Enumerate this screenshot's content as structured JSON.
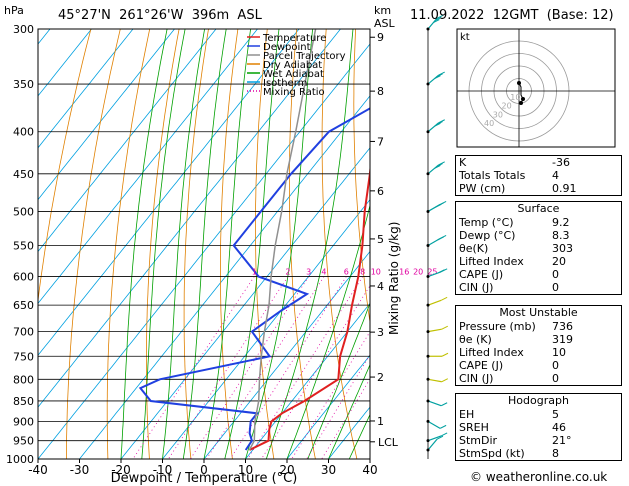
{
  "header": {
    "pressure_unit": "hPa",
    "location": "45°27'N  261°26'W  396m  ASL",
    "km_unit": "km",
    "asl_unit": "ASL",
    "datetime": "11.09.2022  12GMT  (Base: 12)"
  },
  "legend": [
    {
      "label": "Temperature",
      "color": "#e02020",
      "style": "solid"
    },
    {
      "label": "Dewpoint",
      "color": "#2040e0",
      "style": "solid"
    },
    {
      "label": "Parcel Trajectory",
      "color": "#909090",
      "style": "solid"
    },
    {
      "label": "Dry Adiabat",
      "color": "#e08000",
      "style": "solid"
    },
    {
      "label": "Wet Adiabat",
      "color": "#00a000",
      "style": "solid"
    },
    {
      "label": "Isotherm",
      "color": "#00a0e0",
      "style": "solid"
    },
    {
      "label": "Mixing Ratio",
      "color": "#e000a0",
      "style": "dotted"
    }
  ],
  "chart_data": {
    "type": "line",
    "xlabel": "Dewpoint / Temperature (°C)",
    "ylabel_right": "Mixing Ratio (g/kg)",
    "x_ticks": [
      -40,
      -30,
      -20,
      -10,
      0,
      10,
      20,
      30,
      40
    ],
    "pressure_ticks": [
      300,
      350,
      400,
      450,
      500,
      550,
      600,
      650,
      700,
      750,
      800,
      850,
      900,
      950,
      1000
    ],
    "km_ticks": [
      {
        "label": "9",
        "p": 307
      },
      {
        "label": "8",
        "p": 357
      },
      {
        "label": "7",
        "p": 411
      },
      {
        "label": "6",
        "p": 472
      },
      {
        "label": "5",
        "p": 540
      },
      {
        "label": "4",
        "p": 616
      },
      {
        "label": "3",
        "p": 701
      },
      {
        "label": "2",
        "p": 795
      },
      {
        "label": "1",
        "p": 899
      }
    ],
    "lcl_label": "LCL",
    "lcl_p": 953,
    "mixing_ratio_labels": [
      "1",
      "2",
      "3",
      "4",
      "6",
      "8",
      "10",
      "16",
      "20",
      "25"
    ],
    "mixing_ratio_values": [
      1,
      2,
      3,
      4,
      6,
      8,
      10,
      16,
      20,
      25
    ],
    "series": [
      {
        "name": "Temperature",
        "color": "#e02020",
        "points": [
          [
            975,
            9.2
          ],
          [
            950,
            12
          ],
          [
            920,
            10
          ],
          [
            900,
            9
          ],
          [
            880,
            10
          ],
          [
            850,
            13
          ],
          [
            800,
            17
          ],
          [
            750,
            13
          ],
          [
            700,
            10
          ],
          [
            650,
            6
          ],
          [
            600,
            2
          ],
          [
            550,
            -3
          ],
          [
            500,
            -9
          ],
          [
            450,
            -15
          ],
          [
            400,
            -22
          ],
          [
            350,
            -30
          ],
          [
            300,
            -40
          ]
        ]
      },
      {
        "name": "Dewpoint",
        "color": "#2040e0",
        "points": [
          [
            975,
            8.3
          ],
          [
            950,
            8
          ],
          [
            930,
            6
          ],
          [
            900,
            4
          ],
          [
            880,
            4
          ],
          [
            850,
            -24
          ],
          [
            820,
            -29
          ],
          [
            800,
            -26
          ],
          [
            750,
            -4
          ],
          [
            700,
            -13
          ],
          [
            660,
            -10
          ],
          [
            630,
            -7
          ],
          [
            600,
            -22
          ],
          [
            550,
            -34
          ],
          [
            500,
            -34
          ],
          [
            450,
            -34
          ],
          [
            400,
            -33
          ],
          [
            350,
            -22
          ],
          [
            320,
            -10
          ],
          [
            300,
            -9
          ]
        ]
      },
      {
        "name": "Parcel Trajectory",
        "color": "#909090",
        "points": [
          [
            975,
            9.2
          ],
          [
            950,
            8.6
          ],
          [
            900,
            5
          ],
          [
            850,
            2
          ],
          [
            800,
            -2
          ],
          [
            750,
            -6
          ],
          [
            700,
            -10
          ],
          [
            650,
            -14
          ],
          [
            600,
            -19
          ],
          [
            550,
            -24
          ],
          [
            500,
            -29
          ],
          [
            450,
            -35
          ],
          [
            400,
            -41
          ],
          [
            350,
            -48
          ],
          [
            300,
            -56
          ]
        ]
      }
    ],
    "wind_barbs": [
      {
        "p": 300,
        "dir": 220,
        "speed": 35
      },
      {
        "p": 350,
        "dir": 230,
        "speed": 35
      },
      {
        "p": 400,
        "dir": 230,
        "speed": 30
      },
      {
        "p": 450,
        "dir": 230,
        "speed": 30
      },
      {
        "p": 500,
        "dir": 240,
        "speed": 30
      },
      {
        "p": 550,
        "dir": 240,
        "speed": 25
      },
      {
        "p": 600,
        "dir": 250,
        "speed": 20
      },
      {
        "p": 650,
        "dir": 250,
        "speed": 15
      },
      {
        "p": 700,
        "dir": 260,
        "speed": 15
      },
      {
        "p": 750,
        "dir": 270,
        "speed": 10
      },
      {
        "p": 800,
        "dir": 280,
        "speed": 10
      },
      {
        "p": 850,
        "dir": 290,
        "speed": 10
      },
      {
        "p": 900,
        "dir": 300,
        "speed": 10
      },
      {
        "p": 950,
        "dir": 250,
        "speed": 10
      },
      {
        "p": 975,
        "dir": 220,
        "speed": 10
      }
    ]
  },
  "hodograph": {
    "label": "kt",
    "ring_labels": [
      "40",
      "30",
      "20",
      "10"
    ],
    "points": [
      [
        0,
        4
      ],
      [
        1,
        2
      ],
      [
        1,
        -2
      ],
      [
        2,
        -4
      ],
      [
        1,
        -6
      ]
    ],
    "markers": [
      [
        0,
        4
      ],
      [
        2,
        -4
      ],
      [
        1,
        -6
      ]
    ]
  },
  "indices": [
    {
      "label": "K",
      "value": "-36"
    },
    {
      "label": "Totals Totals",
      "value": "4"
    },
    {
      "label": "PW (cm)",
      "value": "0.91"
    }
  ],
  "surface": {
    "title": "Surface",
    "rows": [
      {
        "label": "Temp (°C)",
        "value": "9.2"
      },
      {
        "label": "Dewp (°C)",
        "value": "8.3"
      },
      {
        "label": "θe(K)",
        "value": "303"
      },
      {
        "label": "Lifted Index",
        "value": "20"
      },
      {
        "label": "CAPE (J)",
        "value": "0"
      },
      {
        "label": "CIN (J)",
        "value": "0"
      }
    ]
  },
  "most_unstable": {
    "title": "Most Unstable",
    "rows": [
      {
        "label": "Pressure (mb)",
        "value": "736"
      },
      {
        "label": "θe (K)",
        "value": "319"
      },
      {
        "label": "Lifted Index",
        "value": "10"
      },
      {
        "label": "CAPE (J)",
        "value": "0"
      },
      {
        "label": "CIN (J)",
        "value": "0"
      }
    ]
  },
  "hodograph_table": {
    "title": "Hodograph",
    "rows": [
      {
        "label": "EH",
        "value": "5"
      },
      {
        "label": "SREH",
        "value": "46"
      },
      {
        "label": "StmDir",
        "value": "21°"
      },
      {
        "label": "StmSpd (kt)",
        "value": "8"
      }
    ]
  },
  "footer": "© weatheronline.co.uk"
}
